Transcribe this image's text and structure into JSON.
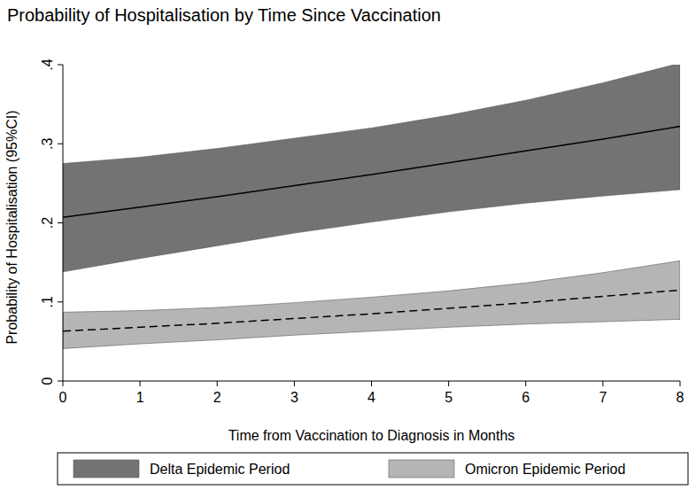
{
  "chart_data": {
    "type": "line",
    "title": "Probability of Hospitalisation by Time Since Vaccination",
    "x_label": "Time from Vaccination to Diagnosis in Months",
    "y_label": "Probability of Hospitalisation (95%CI)",
    "x": [
      0,
      1,
      2,
      3,
      4,
      5,
      6,
      7,
      8
    ],
    "series": [
      {
        "name": "Delta Epidemic Period",
        "color": "#737373",
        "line_style": "solid",
        "values": [
          0.207,
          0.22,
          0.233,
          0.247,
          0.261,
          0.276,
          0.291,
          0.306,
          0.322
        ],
        "lower": [
          0.138,
          0.155,
          0.171,
          0.187,
          0.201,
          0.214,
          0.225,
          0.234,
          0.242
        ],
        "upper": [
          0.275,
          0.283,
          0.294,
          0.307,
          0.32,
          0.336,
          0.355,
          0.377,
          0.402
        ]
      },
      {
        "name": "Omicron Epidemic Period",
        "color": "#b5b5b5",
        "line_style": "dashed",
        "values": [
          0.063,
          0.068,
          0.073,
          0.079,
          0.085,
          0.092,
          0.099,
          0.107,
          0.115
        ],
        "lower": [
          0.041,
          0.047,
          0.052,
          0.058,
          0.063,
          0.068,
          0.072,
          0.075,
          0.078
        ],
        "upper": [
          0.087,
          0.089,
          0.093,
          0.099,
          0.106,
          0.114,
          0.124,
          0.137,
          0.152
        ]
      }
    ],
    "xlim": [
      0,
      8
    ],
    "xticks": [
      0,
      1,
      2,
      3,
      4,
      5,
      6,
      7,
      8
    ],
    "ylim": [
      0,
      0.4
    ],
    "yticks": [
      0,
      {
        "value": 0.1,
        "label": ".1"
      },
      {
        "value": 0.2,
        "label": ".2"
      },
      {
        "value": 0.3,
        "label": ".3"
      },
      {
        "value": 0.4,
        "label": ".4"
      }
    ],
    "grid": false,
    "legend": "bottom"
  }
}
